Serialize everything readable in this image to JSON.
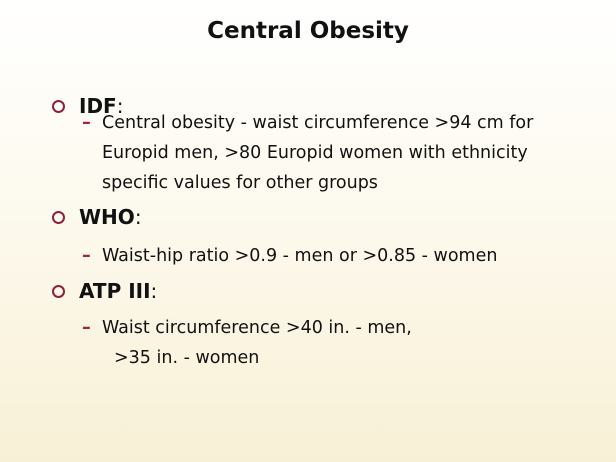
{
  "title": "Central Obesity",
  "bullet_color": "#8b2040",
  "items": [
    {
      "label": "IDF",
      "colon": ":",
      "sub": [
        "Central obesity - waist circumference >94 cm for",
        "Europid men, >80 Europid women with ethnicity",
        "specific values for other groups"
      ]
    },
    {
      "label": "WHO",
      "colon": ":",
      "sub": [
        "Waist-hip ratio >0.9 - men or >0.85 - women"
      ]
    },
    {
      "label": "ATP III",
      "colon": ":",
      "sub": [
        "Waist circumference >40 in. - men,",
        "  >35 in. - women"
      ]
    }
  ]
}
